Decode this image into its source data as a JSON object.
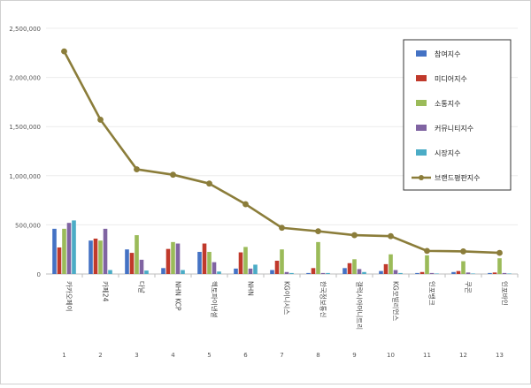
{
  "chart_data": {
    "type": "bar",
    "ylim": [
      0,
      2500000
    ],
    "yticks": [
      "0",
      "500,000",
      "1,000,000",
      "1,500,000",
      "2,000,000",
      "2,500,000"
    ],
    "ytick_values": [
      0,
      500000,
      1000000,
      1500000,
      2000000,
      2500000
    ],
    "grid": true,
    "legend_position": "top-right",
    "categories": [
      "카카오페이",
      "카페24",
      "다날",
      "NHN KCP",
      "헥토파이낸셜",
      "NHN",
      "KG이니시스",
      "한국정보통신",
      "갤럭시아머니트리",
      "KG모빌리언스",
      "인포뱅크",
      "쿠콘",
      "인포바인"
    ],
    "numbers": [
      "1",
      "2",
      "3",
      "4",
      "5",
      "6",
      "7",
      "8",
      "9",
      "10",
      "11",
      "12",
      "13"
    ],
    "series": [
      {
        "name": "참여지수",
        "kind": "bar",
        "color": "#4472C4",
        "values": [
          460000,
          340000,
          250000,
          60000,
          225000,
          55000,
          40000,
          10000,
          60000,
          30000,
          10000,
          20000,
          10000
        ]
      },
      {
        "name": "미디어지수",
        "kind": "bar",
        "color": "#C0392B",
        "values": [
          270000,
          360000,
          215000,
          255000,
          310000,
          220000,
          135000,
          60000,
          110000,
          100000,
          20000,
          30000,
          15000
        ]
      },
      {
        "name": "소통지수",
        "kind": "bar",
        "color": "#9BBB59",
        "values": [
          460000,
          340000,
          395000,
          325000,
          225000,
          275000,
          250000,
          325000,
          150000,
          200000,
          190000,
          130000,
          160000
        ]
      },
      {
        "name": "커뮤니티지수",
        "kind": "bar",
        "color": "#8064A2",
        "values": [
          520000,
          460000,
          145000,
          310000,
          120000,
          55000,
          20000,
          10000,
          50000,
          40000,
          10000,
          15000,
          10000
        ]
      },
      {
        "name": "시장지수",
        "kind": "bar",
        "color": "#4BACC6",
        "values": [
          545000,
          40000,
          35000,
          40000,
          25000,
          95000,
          10000,
          10000,
          20000,
          10000,
          5000,
          5000,
          5000
        ]
      },
      {
        "name": "브랜드평판지수",
        "kind": "line",
        "color": "#8B7D3A",
        "values": [
          2265000,
          1570000,
          1065000,
          1010000,
          920000,
          710000,
          470000,
          435000,
          395000,
          385000,
          235000,
          230000,
          215000
        ]
      }
    ]
  }
}
